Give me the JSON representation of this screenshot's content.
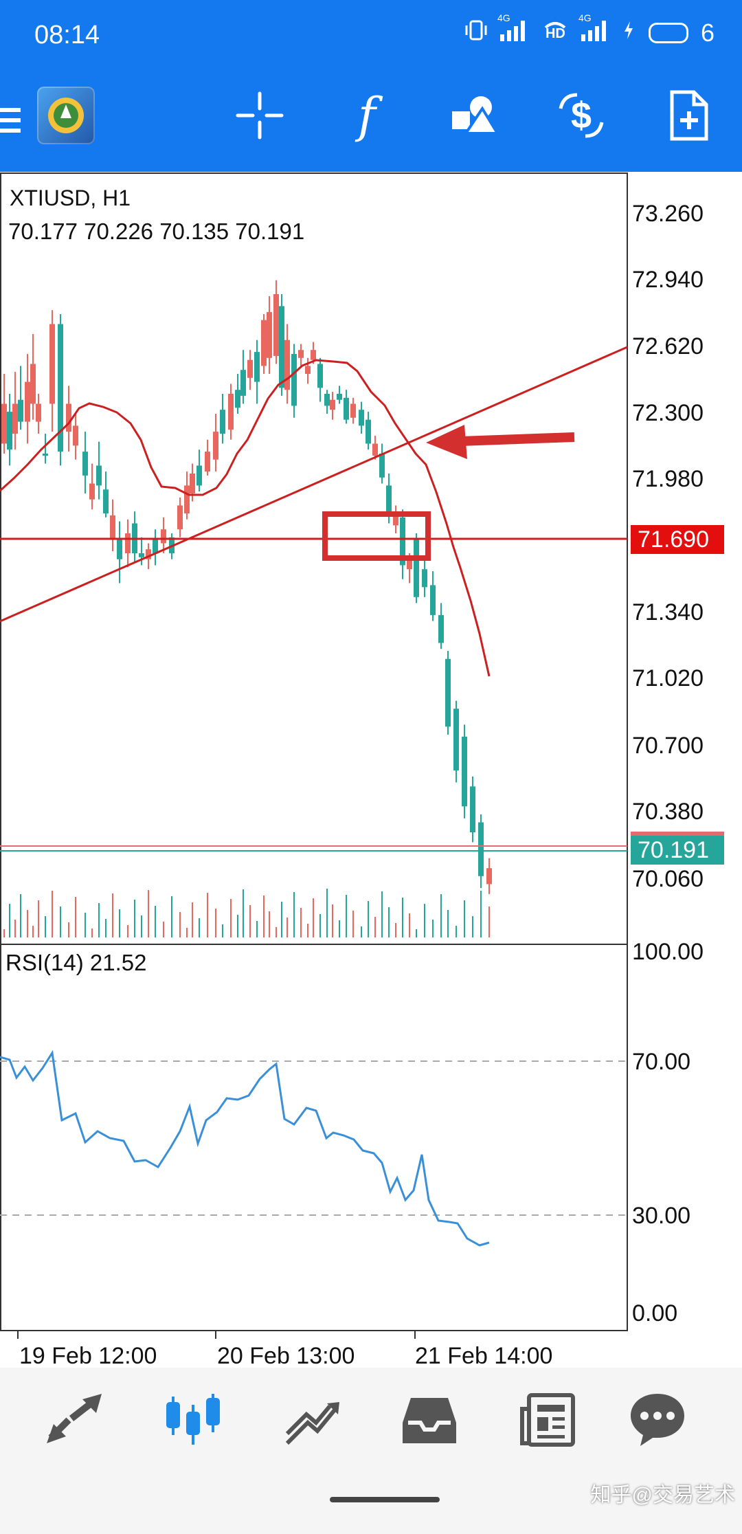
{
  "status_bar": {
    "time": "08:14",
    "network_1": "4G",
    "hd_label": "HD",
    "network_2": "4G",
    "battery_level": "6"
  },
  "toolbar": {
    "buttons": [
      "crosshair",
      "indicators",
      "objects",
      "timeframe-symbol",
      "new-order"
    ],
    "indicators_glyph": "f"
  },
  "chart": {
    "symbol_line": "XTIUSD, H1",
    "ohlc_line": "70.177 70.226 70.135 70.191",
    "price_labels": [
      "73.260",
      "72.940",
      "72.620",
      "72.300",
      "71.980",
      "71.340",
      "71.020",
      "70.700",
      "70.380",
      "70.060"
    ],
    "red_level_label": "71.690",
    "current_price_label": "70.191",
    "rsi_label": "RSI(14) 21.52",
    "rsi_levels": [
      "100.00",
      "70.00",
      "30.00",
      "0.00"
    ],
    "time_labels": [
      "19 Feb 12:00",
      "20 Feb 13:00",
      "21 Feb 14:00"
    ],
    "colors": {
      "bull": "#e8685f",
      "bear": "#26a69a",
      "annotation": "#d32f2f",
      "rsi_line": "#3a8fd9",
      "red_label_bg": "#e30f0f",
      "current_label_bg": "#26a69a"
    }
  },
  "bottom_nav": {
    "items": [
      "quotes",
      "chart",
      "trade",
      "history",
      "news",
      "messages"
    ],
    "active": "chart"
  },
  "watermark": "知乎@交易艺术"
}
